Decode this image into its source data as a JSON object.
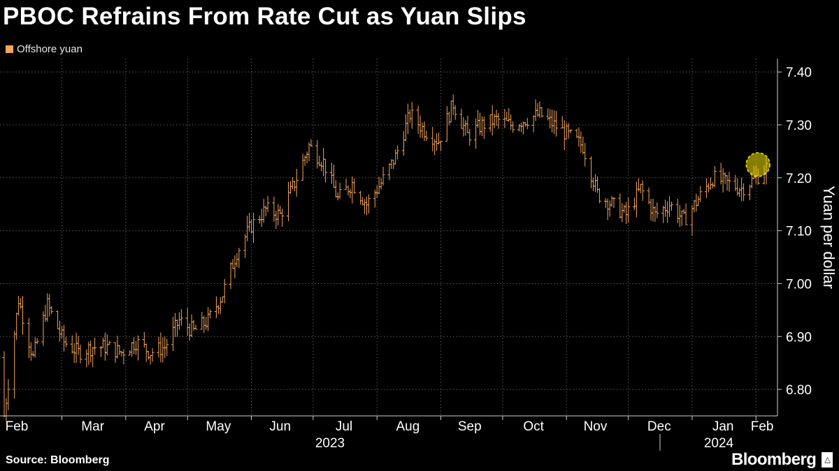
{
  "title": "PBOC Refrains From Rate Cut as Yuan Slips",
  "source": "Source: Bloomberg",
  "brand": "Bloomberg",
  "colors": {
    "series": "#f5a65b",
    "highlight": "#f2e400",
    "grid": "#5a5a5a",
    "background": "#000000"
  },
  "chart_data": {
    "type": "ohlc",
    "title": "PBOC Refrains From Rate Cut as Yuan Slips",
    "ylabel": "Yuan per dollar",
    "ylim": [
      6.75,
      7.42
    ],
    "yticks": [
      6.8,
      6.9,
      7.0,
      7.1,
      7.2,
      7.3,
      7.4
    ],
    "ytick_labels": [
      "6.80",
      "6.90",
      "7.00",
      "7.10",
      "7.20",
      "7.30",
      "7.40"
    ],
    "y_axis_side": "right",
    "grid": true,
    "legend_position": "top-left",
    "x_months": [
      "Feb",
      "Mar",
      "Apr",
      "May",
      "Jun",
      "Jul",
      "Aug",
      "Sep",
      "Oct",
      "Nov",
      "Dec",
      "Jan",
      "Feb"
    ],
    "x_years": [
      "2023",
      "2024"
    ],
    "xlim": [
      "2023-02-01",
      "2024-02-06"
    ],
    "series": [
      {
        "name": "Offshore yuan",
        "anchor_closes": [
          [
            "2023-02-01",
            6.75
          ],
          [
            "2023-02-08",
            6.97
          ],
          [
            "2023-02-15",
            6.86
          ],
          [
            "2023-02-22",
            6.96
          ],
          [
            "2023-03-02",
            6.89
          ],
          [
            "2023-03-09",
            6.87
          ],
          [
            "2023-03-16",
            6.88
          ],
          [
            "2023-03-23",
            6.88
          ],
          [
            "2023-03-30",
            6.87
          ],
          [
            "2023-04-06",
            6.89
          ],
          [
            "2023-04-13",
            6.87
          ],
          [
            "2023-04-20",
            6.88
          ],
          [
            "2023-04-27",
            6.93
          ],
          [
            "2023-05-04",
            6.91
          ],
          [
            "2023-05-11",
            6.93
          ],
          [
            "2023-05-18",
            6.98
          ],
          [
            "2023-05-25",
            7.06
          ],
          [
            "2023-06-01",
            7.11
          ],
          [
            "2023-06-08",
            7.14
          ],
          [
            "2023-06-15",
            7.13
          ],
          [
            "2023-06-22",
            7.19
          ],
          [
            "2023-06-29",
            7.26
          ],
          [
            "2023-07-06",
            7.23
          ],
          [
            "2023-07-13",
            7.16
          ],
          [
            "2023-07-20",
            7.19
          ],
          [
            "2023-07-27",
            7.15
          ],
          [
            "2023-08-03",
            7.19
          ],
          [
            "2023-08-10",
            7.24
          ],
          [
            "2023-08-17",
            7.32
          ],
          [
            "2023-08-24",
            7.29
          ],
          [
            "2023-08-31",
            7.27
          ],
          [
            "2023-09-07",
            7.34
          ],
          [
            "2023-09-14",
            7.28
          ],
          [
            "2023-09-21",
            7.3
          ],
          [
            "2023-09-28",
            7.31
          ],
          [
            "2023-10-05",
            7.3
          ],
          [
            "2023-10-12",
            7.31
          ],
          [
            "2023-10-19",
            7.32
          ],
          [
            "2023-10-26",
            7.3
          ],
          [
            "2023-11-02",
            7.28
          ],
          [
            "2023-11-09",
            7.26
          ],
          [
            "2023-11-16",
            7.17
          ],
          [
            "2023-11-23",
            7.15
          ],
          [
            "2023-11-30",
            7.13
          ],
          [
            "2023-12-07",
            7.18
          ],
          [
            "2023-12-14",
            7.13
          ],
          [
            "2023-12-21",
            7.15
          ],
          [
            "2023-12-28",
            7.12
          ],
          [
            "2024-01-04",
            7.16
          ],
          [
            "2024-01-11",
            7.2
          ],
          [
            "2024-01-18",
            7.19
          ],
          [
            "2024-01-25",
            7.18
          ],
          [
            "2024-02-01",
            7.2
          ],
          [
            "2024-02-06",
            7.22
          ]
        ]
      }
    ],
    "annotations": [
      {
        "type": "circle-highlight",
        "x": "2024-02-02",
        "y": 7.225
      }
    ]
  }
}
